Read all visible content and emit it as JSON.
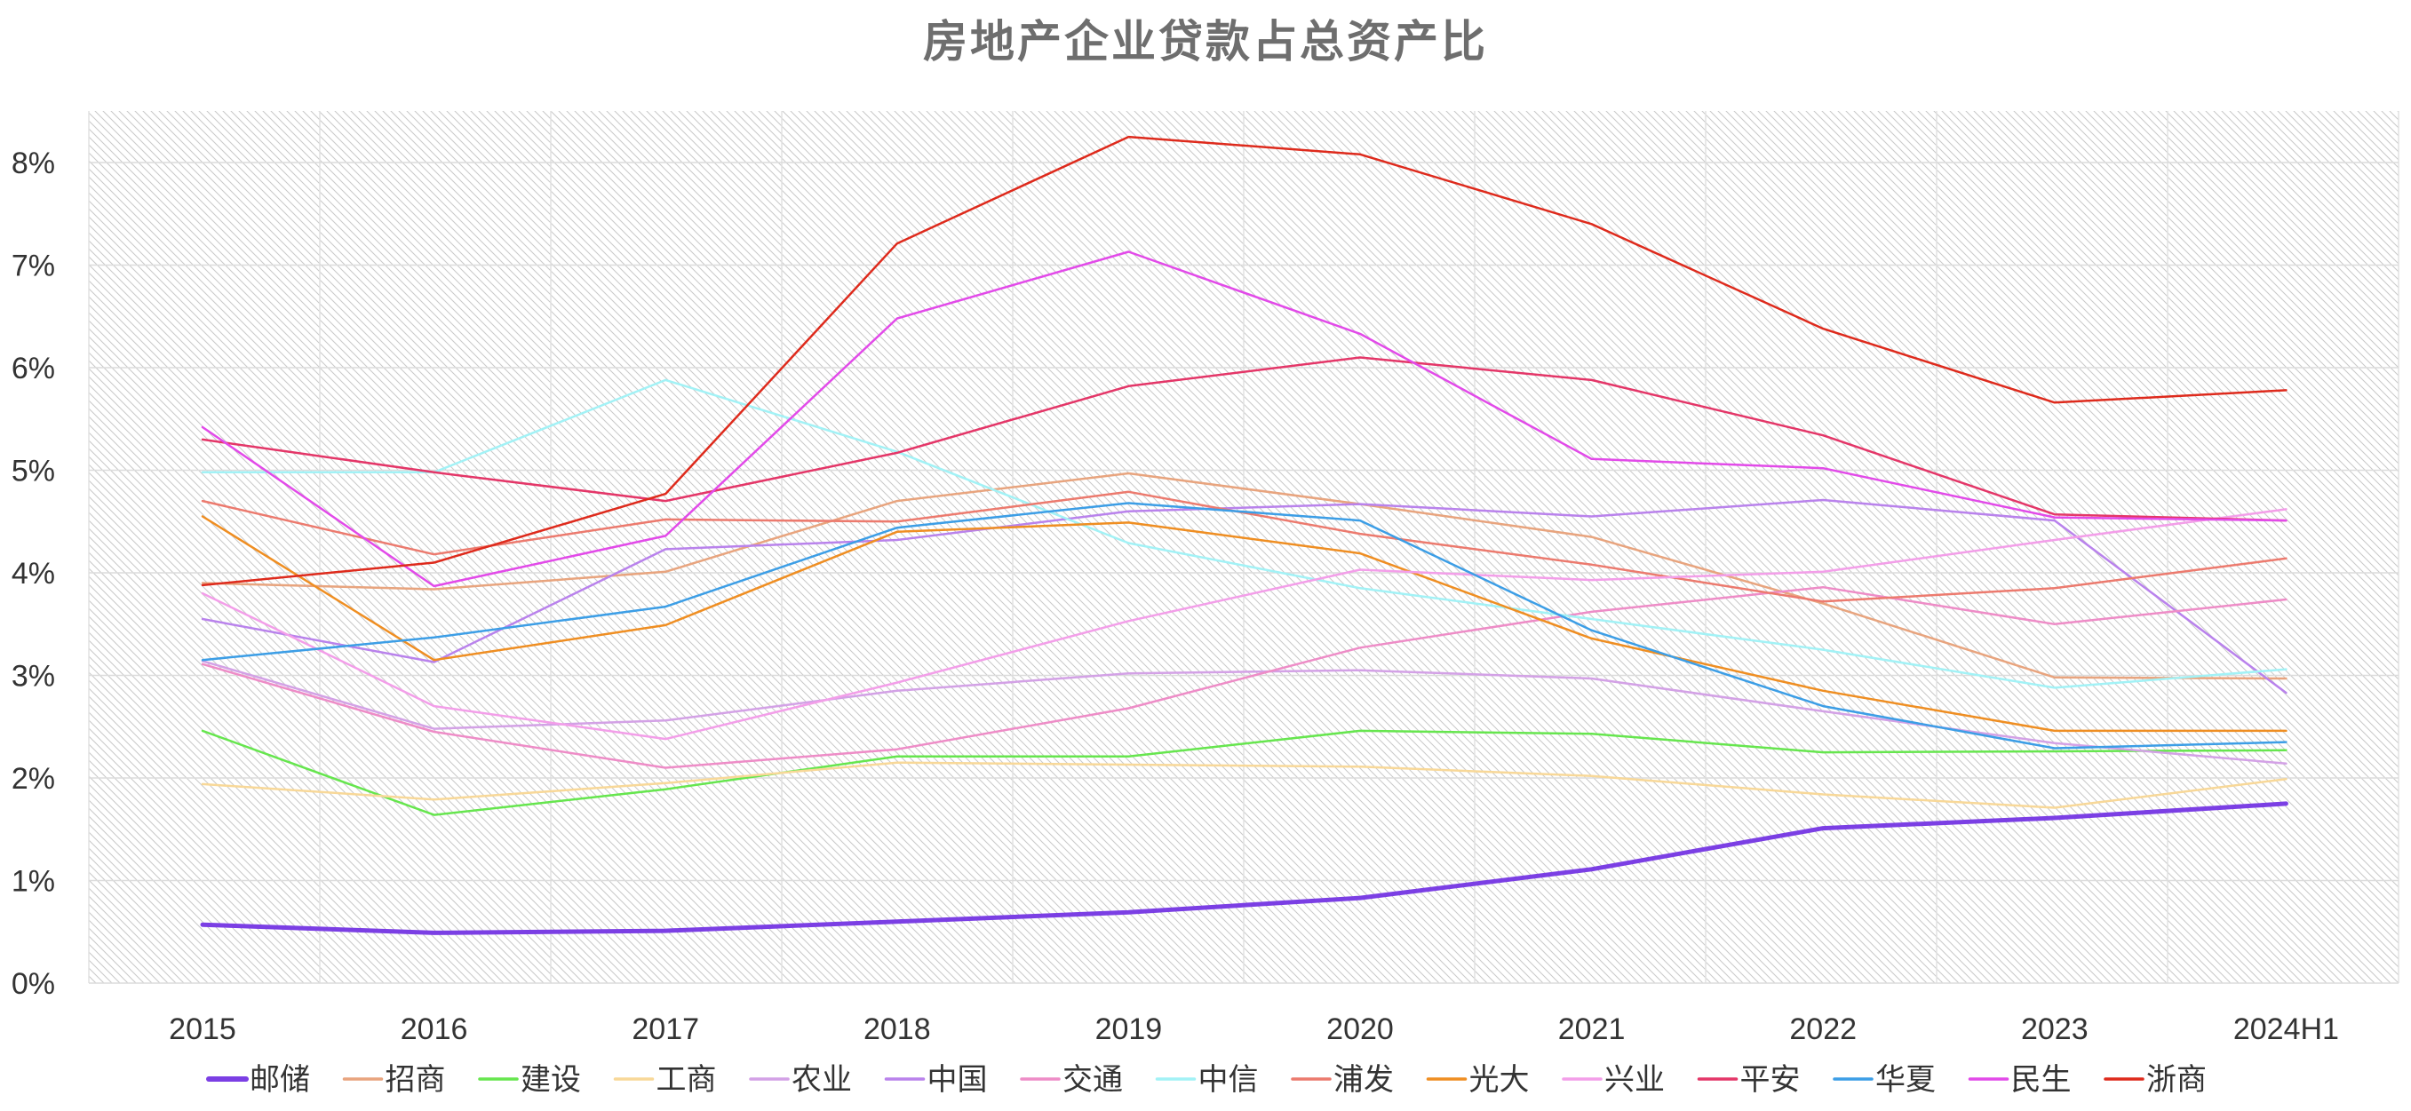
{
  "chart_data": {
    "type": "line",
    "title": "房地产企业贷款占总资产比",
    "xlabel": "",
    "ylabel": "",
    "x": [
      "2015",
      "2016",
      "2017",
      "2018",
      "2019",
      "2020",
      "2021",
      "2022",
      "2023",
      "2024H1"
    ],
    "ylim": [
      0,
      8.5
    ],
    "yticks": [
      0,
      1,
      2,
      3,
      4,
      5,
      6,
      7,
      8
    ],
    "ytick_labels": [
      "0%",
      "1%",
      "2%",
      "3%",
      "4%",
      "5%",
      "6%",
      "7%",
      "8%"
    ],
    "grid": true,
    "legend_position": "bottom",
    "unit": "%",
    "series": [
      {
        "name": "邮储",
        "color": "#7b3fe4",
        "width": 5,
        "values": [
          0.57,
          0.49,
          0.51,
          0.6,
          0.69,
          0.83,
          1.11,
          1.51,
          1.61,
          1.75
        ]
      },
      {
        "name": "招商",
        "color": "#e8a47e",
        "width": 2.5,
        "values": [
          3.9,
          3.84,
          4.01,
          4.7,
          4.97,
          4.67,
          4.35,
          3.7,
          2.98,
          2.97
        ]
      },
      {
        "name": "建设",
        "color": "#66e64e",
        "width": 2.5,
        "values": [
          2.46,
          1.64,
          1.89,
          2.21,
          2.21,
          2.46,
          2.43,
          2.25,
          2.26,
          2.27
        ]
      },
      {
        "name": "工商",
        "color": "#f8d898",
        "width": 2.5,
        "values": [
          1.94,
          1.79,
          1.95,
          2.15,
          2.13,
          2.11,
          2.02,
          1.84,
          1.71,
          1.99
        ]
      },
      {
        "name": "农业",
        "color": "#d3a1e6",
        "width": 2.5,
        "values": [
          3.14,
          2.48,
          2.56,
          2.85,
          3.02,
          3.05,
          2.97,
          2.65,
          2.34,
          2.14
        ]
      },
      {
        "name": "中国",
        "color": "#b982ec",
        "width": 2.5,
        "values": [
          3.55,
          3.13,
          4.23,
          4.32,
          4.6,
          4.67,
          4.55,
          4.71,
          4.51,
          2.83
        ]
      },
      {
        "name": "交通",
        "color": "#ee8cc7",
        "width": 2.5,
        "values": [
          3.11,
          2.45,
          2.1,
          2.28,
          2.68,
          3.27,
          3.62,
          3.86,
          3.5,
          3.74
        ]
      },
      {
        "name": "中信",
        "color": "#a2f2f6",
        "width": 2.5,
        "values": [
          4.98,
          4.98,
          5.88,
          5.18,
          4.29,
          3.85,
          3.55,
          3.25,
          2.88,
          3.06
        ]
      },
      {
        "name": "浦发",
        "color": "#ec7a6e",
        "width": 2.5,
        "values": [
          4.7,
          4.18,
          4.52,
          4.5,
          4.79,
          4.38,
          4.08,
          3.72,
          3.85,
          4.14
        ]
      },
      {
        "name": "光大",
        "color": "#ef8e22",
        "width": 2.5,
        "values": [
          4.55,
          3.15,
          3.49,
          4.4,
          4.49,
          4.19,
          3.36,
          2.85,
          2.46,
          2.46
        ]
      },
      {
        "name": "兴业",
        "color": "#f39ee9",
        "width": 2.5,
        "values": [
          3.8,
          2.7,
          2.38,
          2.93,
          3.53,
          4.03,
          3.93,
          4.01,
          4.32,
          4.62
        ]
      },
      {
        "name": "平安",
        "color": "#e43668",
        "width": 2.5,
        "values": [
          5.3,
          4.98,
          4.7,
          5.17,
          5.82,
          6.1,
          5.88,
          5.34,
          4.57,
          4.51
        ]
      },
      {
        "name": "华夏",
        "color": "#3c9ee6",
        "width": 2.5,
        "values": [
          3.15,
          3.37,
          3.67,
          4.44,
          4.68,
          4.51,
          3.44,
          2.7,
          2.29,
          2.35
        ]
      },
      {
        "name": "民生",
        "color": "#e24ae9",
        "width": 2.5,
        "values": [
          5.42,
          3.87,
          4.36,
          6.48,
          7.13,
          6.33,
          5.11,
          5.02,
          4.54,
          4.51
        ]
      },
      {
        "name": "浙商",
        "color": "#de2a1c",
        "width": 2.5,
        "values": [
          3.88,
          4.1,
          4.77,
          7.21,
          8.25,
          8.08,
          7.4,
          6.38,
          5.66,
          5.78
        ]
      }
    ]
  }
}
